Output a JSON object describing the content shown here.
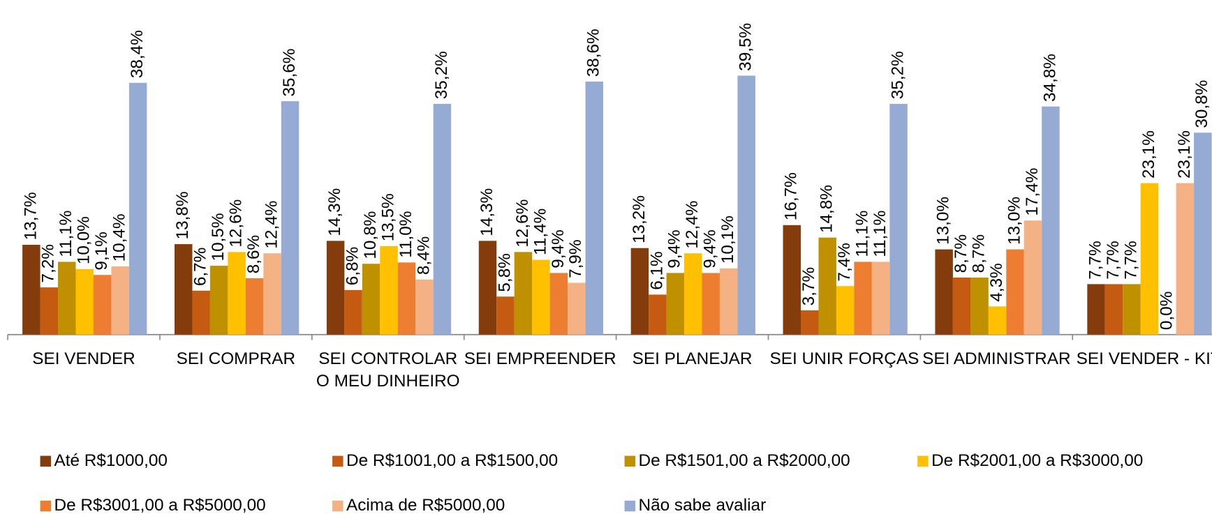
{
  "chart_data": {
    "type": "bar",
    "categories": [
      "SEI VENDER",
      "SEI COMPRAR",
      "SEI CONTROLAR O MEU DINHEIRO",
      "SEI EMPREENDER",
      "SEI PLANEJAR",
      "SEI UNIR FORÇAS",
      "SEI ADMINISTRAR",
      "SEI VENDER - KIT"
    ],
    "ylim": [
      0,
      51
    ],
    "series": [
      {
        "name": "Até R$1000,00",
        "color": "#843c0c",
        "values": [
          13.7,
          13.8,
          14.3,
          14.3,
          13.2,
          16.7,
          13.0,
          7.7
        ],
        "value_labels": [
          "13,7%",
          "13,8%",
          "14,3%",
          "14,3%",
          "13,2%",
          "16,7%",
          "13,0%",
          "7,7%"
        ]
      },
      {
        "name": "De R$1001,00 a R$1500,00",
        "color": "#c55a11",
        "values": [
          7.2,
          6.7,
          6.8,
          5.8,
          6.1,
          3.7,
          8.7,
          7.7
        ],
        "value_labels": [
          "7,2%",
          "6,7%",
          "6,8%",
          "5,8%",
          "6,1%",
          "3,7%",
          "8,7%",
          "7,7%"
        ]
      },
      {
        "name": "De R$1501,00 a R$2000,00",
        "color": "#bf9000",
        "values": [
          11.1,
          10.5,
          10.8,
          12.6,
          9.4,
          14.8,
          8.7,
          7.7
        ],
        "value_labels": [
          "11,1%",
          "10,5%",
          "10,8%",
          "12,6%",
          "9,4%",
          "14,8%",
          "8,7%",
          "7,7%"
        ]
      },
      {
        "name": "De R$2001,00 a R$3000,00",
        "color": "#ffc000",
        "values": [
          10.0,
          12.6,
          13.5,
          11.4,
          12.4,
          7.4,
          4.3,
          23.1
        ],
        "value_labels": [
          "10,0%",
          "12,6%",
          "13,5%",
          "11,4%",
          "12,4%",
          "7,4%",
          "4,3%",
          "23,1%"
        ]
      },
      {
        "name": "De R$3001,00 a R$5000,00",
        "color": "#ed7d31",
        "values": [
          9.1,
          8.6,
          11.0,
          9.4,
          9.4,
          11.1,
          13.0,
          0.0
        ],
        "value_labels": [
          "9,1%",
          "8,6%",
          "11,0%",
          "9,4%",
          "9,4%",
          "11,1%",
          "13,0%",
          "0,0%"
        ]
      },
      {
        "name": "Acima de R$5000,00",
        "color": "#f4b183",
        "values": [
          10.4,
          12.4,
          8.4,
          7.9,
          10.1,
          11.1,
          17.4,
          23.1
        ],
        "value_labels": [
          "10,4%",
          "12,4%",
          "8,4%",
          "7,9%",
          "10,1%",
          "11,1%",
          "17,4%",
          "23,1%"
        ]
      },
      {
        "name": "Não sabe avaliar",
        "color": "#95abd3",
        "values": [
          38.4,
          35.6,
          35.2,
          38.6,
          39.5,
          35.2,
          34.8,
          30.8
        ],
        "value_labels": [
          "38,4%",
          "35,6%",
          "35,2%",
          "38,6%",
          "39,5%",
          "35,2%",
          "34,8%",
          "30,8%"
        ]
      }
    ]
  }
}
